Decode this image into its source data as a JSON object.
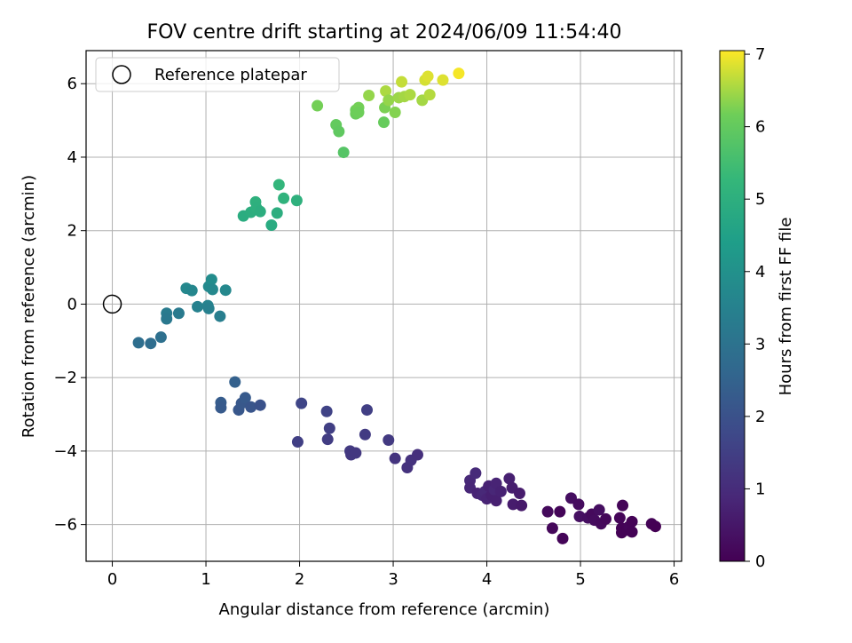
{
  "chart_data": {
    "type": "scatter",
    "title": "FOV centre drift starting at 2024/06/09 11:54:40",
    "xlabel": "Angular distance from reference (arcmin)",
    "ylabel": "Rotation from reference (arcmin)",
    "xlim": [
      -0.28,
      6.08
    ],
    "ylim": [
      -7.0,
      6.9
    ],
    "xticks": [
      0,
      1,
      2,
      3,
      4,
      5,
      6
    ],
    "yticks": [
      -6,
      -4,
      -2,
      0,
      2,
      4,
      6
    ],
    "grid": true,
    "colormap": "viridis",
    "colorbar": {
      "label": "Hours from first FF file",
      "range": [
        0,
        7.05
      ],
      "ticks": [
        0,
        1,
        2,
        3,
        4,
        5,
        6,
        7
      ]
    },
    "legend": {
      "placement": "top-left",
      "entries": [
        {
          "label": "Reference platepar",
          "marker": "open-circle"
        }
      ]
    },
    "reference_point": {
      "x": 0,
      "y": 0
    },
    "points": [
      {
        "x": 4.65,
        "y": -5.65,
        "hours": 0.2
      },
      {
        "x": 4.7,
        "y": -6.1,
        "hours": 0.15
      },
      {
        "x": 4.78,
        "y": -5.65,
        "hours": 0.1
      },
      {
        "x": 4.81,
        "y": -6.38,
        "hours": 0.1
      },
      {
        "x": 4.9,
        "y": -5.28,
        "hours": 0.3
      },
      {
        "x": 4.98,
        "y": -5.45,
        "hours": 0.25
      },
      {
        "x": 4.99,
        "y": -5.78,
        "hours": 0.35
      },
      {
        "x": 5.08,
        "y": -5.82,
        "hours": 0.3
      },
      {
        "x": 5.12,
        "y": -5.72,
        "hours": 0.2
      },
      {
        "x": 5.15,
        "y": -5.88,
        "hours": 0.25
      },
      {
        "x": 5.2,
        "y": -5.6,
        "hours": 0.3
      },
      {
        "x": 5.22,
        "y": -5.98,
        "hours": 0.2
      },
      {
        "x": 5.27,
        "y": -5.85,
        "hours": 0.15
      },
      {
        "x": 5.42,
        "y": -5.82,
        "hours": 0.1
      },
      {
        "x": 5.44,
        "y": -6.1,
        "hours": 0.05
      },
      {
        "x": 5.44,
        "y": -6.22,
        "hours": 0.05
      },
      {
        "x": 5.45,
        "y": -5.48,
        "hours": 0.1
      },
      {
        "x": 5.5,
        "y": -6.15,
        "hours": 0.05
      },
      {
        "x": 5.52,
        "y": -6.05,
        "hours": 0.1
      },
      {
        "x": 5.55,
        "y": -5.92,
        "hours": 0.05
      },
      {
        "x": 5.55,
        "y": -6.2,
        "hours": 0.05
      },
      {
        "x": 5.76,
        "y": -5.98,
        "hours": 0.05
      },
      {
        "x": 5.8,
        "y": -6.05,
        "hours": 0.0
      },
      {
        "x": 3.82,
        "y": -4.8,
        "hours": 0.9
      },
      {
        "x": 3.82,
        "y": -5.0,
        "hours": 0.85
      },
      {
        "x": 3.88,
        "y": -4.6,
        "hours": 0.95
      },
      {
        "x": 3.9,
        "y": -5.15,
        "hours": 0.8
      },
      {
        "x": 3.95,
        "y": -5.2,
        "hours": 0.85
      },
      {
        "x": 3.98,
        "y": -5.1,
        "hours": 0.9
      },
      {
        "x": 4.0,
        "y": -5.3,
        "hours": 0.8
      },
      {
        "x": 4.02,
        "y": -4.95,
        "hours": 0.75
      },
      {
        "x": 4.05,
        "y": -5.2,
        "hours": 0.7
      },
      {
        "x": 4.08,
        "y": -5.05,
        "hours": 0.85
      },
      {
        "x": 4.1,
        "y": -4.88,
        "hours": 0.8
      },
      {
        "x": 4.1,
        "y": -5.35,
        "hours": 0.7
      },
      {
        "x": 4.15,
        "y": -5.1,
        "hours": 0.75
      },
      {
        "x": 4.24,
        "y": -4.75,
        "hours": 0.7
      },
      {
        "x": 4.27,
        "y": -5.0,
        "hours": 0.65
      },
      {
        "x": 4.28,
        "y": -5.45,
        "hours": 0.6
      },
      {
        "x": 4.35,
        "y": -5.15,
        "hours": 0.6
      },
      {
        "x": 4.37,
        "y": -5.48,
        "hours": 0.55
      },
      {
        "x": 1.98,
        "y": -3.75,
        "hours": 1.5
      },
      {
        "x": 2.02,
        "y": -2.7,
        "hours": 1.65
      },
      {
        "x": 2.29,
        "y": -2.92,
        "hours": 1.6
      },
      {
        "x": 2.3,
        "y": -3.68,
        "hours": 1.45
      },
      {
        "x": 2.32,
        "y": -3.38,
        "hours": 1.5
      },
      {
        "x": 2.54,
        "y": -4.0,
        "hours": 1.35
      },
      {
        "x": 2.55,
        "y": -4.1,
        "hours": 1.3
      },
      {
        "x": 2.6,
        "y": -4.05,
        "hours": 1.3
      },
      {
        "x": 2.7,
        "y": -3.55,
        "hours": 1.4
      },
      {
        "x": 2.72,
        "y": -2.88,
        "hours": 1.5
      },
      {
        "x": 2.95,
        "y": -3.7,
        "hours": 1.35
      },
      {
        "x": 3.02,
        "y": -4.2,
        "hours": 1.2
      },
      {
        "x": 3.15,
        "y": -4.45,
        "hours": 1.15
      },
      {
        "x": 3.19,
        "y": -4.25,
        "hours": 1.15
      },
      {
        "x": 3.26,
        "y": -4.1,
        "hours": 1.1
      },
      {
        "x": 1.16,
        "y": -2.68,
        "hours": 2.3
      },
      {
        "x": 1.16,
        "y": -2.82,
        "hours": 2.25
      },
      {
        "x": 1.31,
        "y": -2.12,
        "hours": 2.45
      },
      {
        "x": 1.35,
        "y": -2.88,
        "hours": 2.15
      },
      {
        "x": 1.38,
        "y": -2.7,
        "hours": 2.2
      },
      {
        "x": 1.42,
        "y": -2.55,
        "hours": 2.25
      },
      {
        "x": 1.48,
        "y": -2.8,
        "hours": 2.1
      },
      {
        "x": 1.58,
        "y": -2.75,
        "hours": 2.0
      },
      {
        "x": 0.28,
        "y": -1.05,
        "hours": 2.85
      },
      {
        "x": 0.41,
        "y": -1.07,
        "hours": 2.8
      },
      {
        "x": 0.52,
        "y": -0.9,
        "hours": 2.9
      },
      {
        "x": 0.58,
        "y": -0.25,
        "hours": 3.3
      },
      {
        "x": 0.58,
        "y": -0.4,
        "hours": 3.2
      },
      {
        "x": 0.71,
        "y": -0.25,
        "hours": 3.25
      },
      {
        "x": 0.79,
        "y": 0.43,
        "hours": 3.7
      },
      {
        "x": 0.85,
        "y": 0.37,
        "hours": 3.65
      },
      {
        "x": 0.91,
        "y": -0.07,
        "hours": 3.5
      },
      {
        "x": 1.02,
        "y": -0.04,
        "hours": 3.55
      },
      {
        "x": 1.03,
        "y": -0.12,
        "hours": 3.45
      },
      {
        "x": 1.03,
        "y": 0.48,
        "hours": 3.75
      },
      {
        "x": 1.06,
        "y": 0.67,
        "hours": 3.85
      },
      {
        "x": 1.07,
        "y": 0.4,
        "hours": 3.7
      },
      {
        "x": 1.15,
        "y": -0.33,
        "hours": 3.4
      },
      {
        "x": 1.21,
        "y": 0.38,
        "hours": 3.7
      },
      {
        "x": 1.4,
        "y": 2.4,
        "hours": 4.9
      },
      {
        "x": 1.48,
        "y": 2.5,
        "hours": 4.95
      },
      {
        "x": 1.53,
        "y": 2.78,
        "hours": 5.05
      },
      {
        "x": 1.54,
        "y": 2.62,
        "hours": 5.0
      },
      {
        "x": 1.58,
        "y": 2.52,
        "hours": 4.95
      },
      {
        "x": 1.7,
        "y": 2.15,
        "hours": 4.85
      },
      {
        "x": 1.76,
        "y": 2.48,
        "hours": 4.95
      },
      {
        "x": 1.78,
        "y": 3.25,
        "hours": 5.2
      },
      {
        "x": 1.83,
        "y": 2.88,
        "hours": 5.1
      },
      {
        "x": 1.97,
        "y": 2.82,
        "hours": 5.05
      },
      {
        "x": 2.19,
        "y": 5.4,
        "hours": 6.2
      },
      {
        "x": 2.39,
        "y": 4.88,
        "hours": 6.0
      },
      {
        "x": 2.42,
        "y": 4.7,
        "hours": 5.95
      },
      {
        "x": 2.47,
        "y": 4.13,
        "hours": 5.8
      },
      {
        "x": 2.6,
        "y": 5.18,
        "hours": 6.1
      },
      {
        "x": 2.6,
        "y": 5.28,
        "hours": 6.15
      },
      {
        "x": 2.63,
        "y": 5.35,
        "hours": 6.2
      },
      {
        "x": 2.63,
        "y": 5.22,
        "hours": 6.15
      },
      {
        "x": 2.74,
        "y": 5.68,
        "hours": 6.4
      },
      {
        "x": 2.9,
        "y": 4.95,
        "hours": 6.05
      },
      {
        "x": 2.91,
        "y": 5.35,
        "hours": 6.25
      },
      {
        "x": 2.92,
        "y": 5.8,
        "hours": 6.55
      },
      {
        "x": 2.95,
        "y": 5.55,
        "hours": 6.4
      },
      {
        "x": 3.02,
        "y": 5.22,
        "hours": 6.3
      },
      {
        "x": 3.06,
        "y": 5.62,
        "hours": 6.45
      },
      {
        "x": 3.09,
        "y": 6.05,
        "hours": 6.7
      },
      {
        "x": 3.12,
        "y": 5.65,
        "hours": 6.5
      },
      {
        "x": 3.18,
        "y": 5.7,
        "hours": 6.55
      },
      {
        "x": 3.31,
        "y": 5.55,
        "hours": 6.5
      },
      {
        "x": 3.34,
        "y": 6.1,
        "hours": 6.8
      },
      {
        "x": 3.37,
        "y": 6.2,
        "hours": 6.85
      },
      {
        "x": 3.39,
        "y": 5.7,
        "hours": 6.6
      },
      {
        "x": 3.53,
        "y": 6.1,
        "hours": 6.85
      },
      {
        "x": 3.7,
        "y": 6.28,
        "hours": 7.0
      }
    ]
  }
}
